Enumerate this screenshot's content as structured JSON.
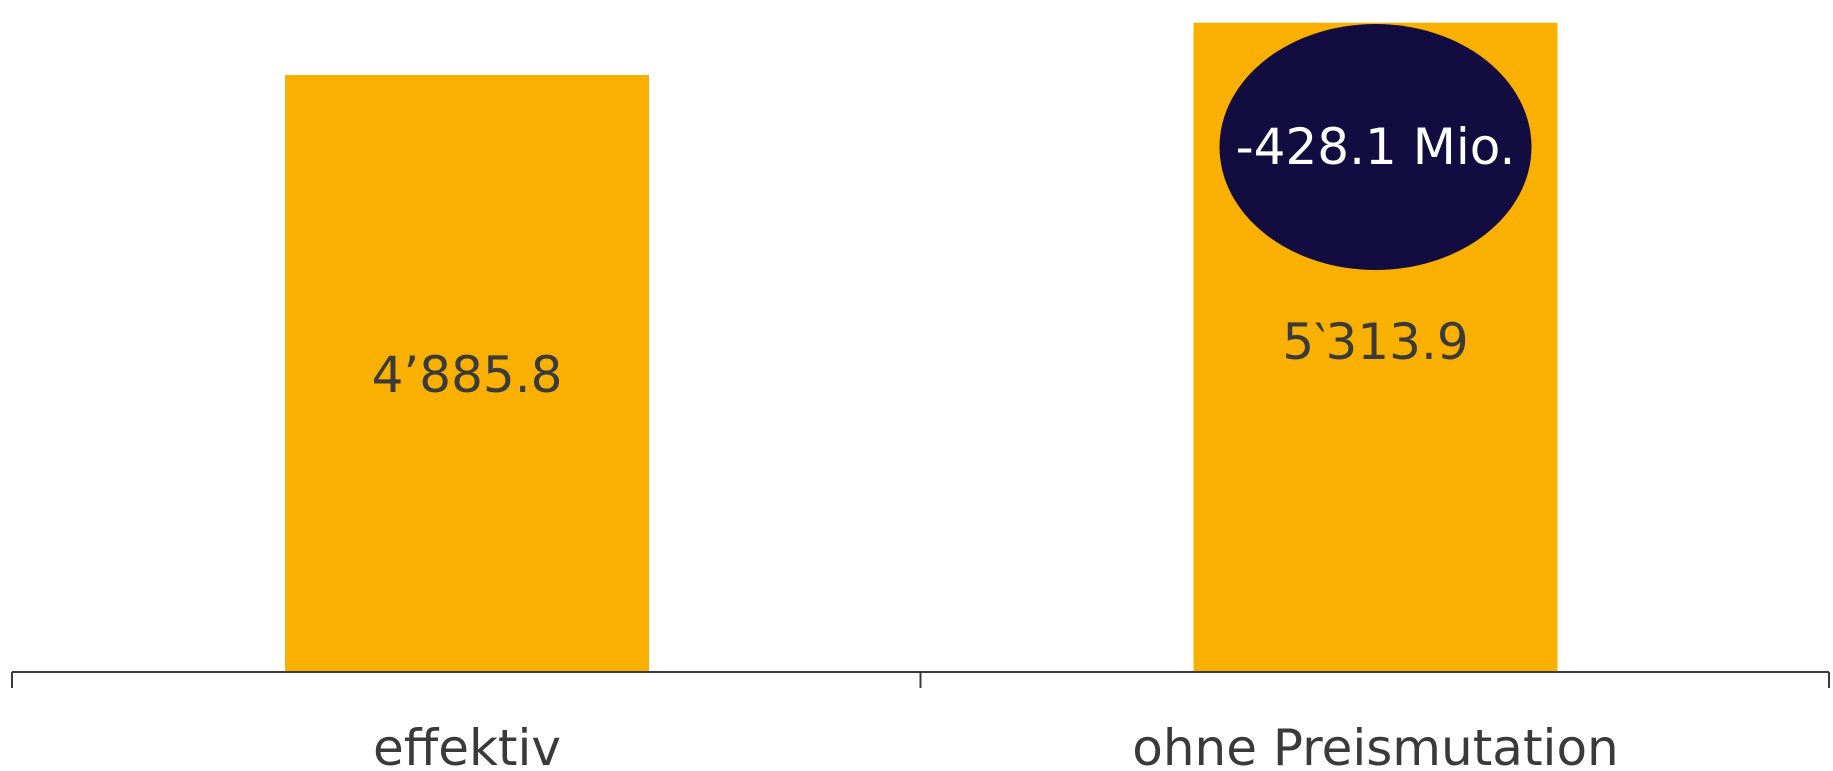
{
  "chart_data": {
    "type": "bar",
    "categories": [
      "effektiv",
      "ohne Preismutation"
    ],
    "values": [
      4885.8,
      5313.9
    ],
    "value_labels": [
      "4’885.8",
      "5‵313.9"
    ],
    "annotation": {
      "text": "-428.1 Mio.",
      "category_index": 1,
      "shape": "ellipse"
    },
    "ylim": [
      0,
      5400
    ],
    "grid": false,
    "legend": "none",
    "title": "",
    "xlabel": "",
    "ylabel": ""
  },
  "colors": {
    "bar": "#F9B000",
    "annotation_fill": "#120C40",
    "annotation_text": "#FFFFFF",
    "axis": "#3A3A3A",
    "label_text": "#3A3A3A"
  }
}
